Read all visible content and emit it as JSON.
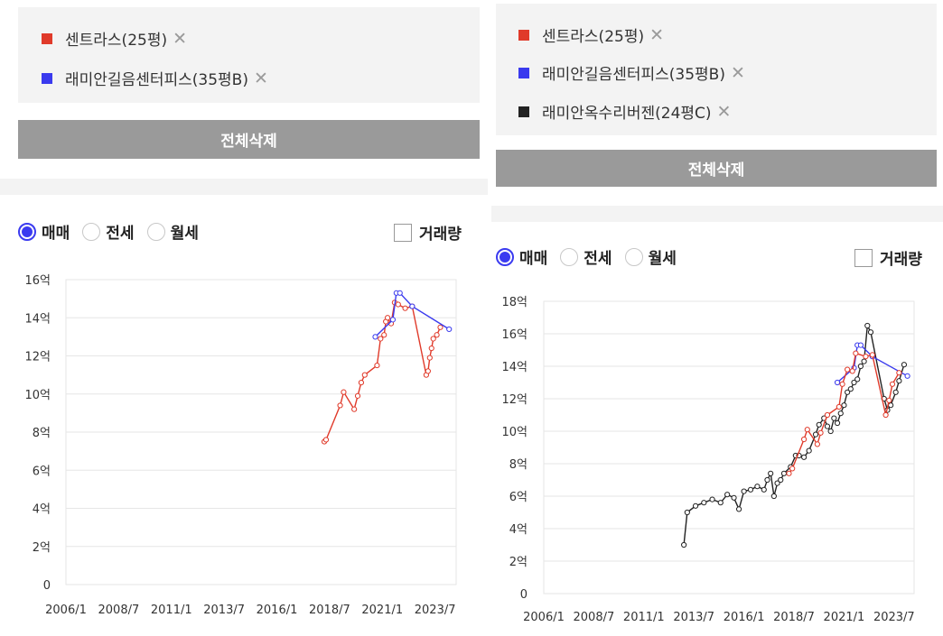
{
  "panels": [
    {
      "id": "left",
      "legend_items": [
        {
          "label": "센트라스(25평)",
          "color": "#e03a2a"
        },
        {
          "label": "래미안길음센터피스(35평B)",
          "color": "#3a3aee"
        }
      ],
      "remove_icon": "close-icon",
      "clear_label": "전체삭제",
      "radios": [
        {
          "label": "매매",
          "selected": true
        },
        {
          "label": "전세",
          "selected": false
        },
        {
          "label": "월세",
          "selected": false
        }
      ],
      "volume_label": "거래량",
      "volume_checked": false
    },
    {
      "id": "right",
      "legend_items": [
        {
          "label": "센트라스(25평)",
          "color": "#e03a2a"
        },
        {
          "label": "래미안길음센터피스(35평B)",
          "color": "#3a3aee"
        },
        {
          "label": "래미안옥수리버젠(24평C)",
          "color": "#222222"
        }
      ],
      "remove_icon": "close-icon",
      "clear_label": "전체삭제",
      "radios": [
        {
          "label": "매매",
          "selected": true
        },
        {
          "label": "전세",
          "selected": false
        },
        {
          "label": "월세",
          "selected": false
        }
      ],
      "volume_label": "거래량",
      "volume_checked": false
    }
  ],
  "chart_data": [
    {
      "type": "line",
      "x_ticks": [
        "2006/1",
        "2008/7",
        "2011/1",
        "2013/7",
        "2016/1",
        "2018/7",
        "2021/1",
        "2023/7"
      ],
      "x_range": [
        "2006/1",
        "2024/7"
      ],
      "y_ticks": [
        "0",
        "2억",
        "4억",
        "6억",
        "8억",
        "10억",
        "12억",
        "14억",
        "16억"
      ],
      "y_unit": "억",
      "ylim": [
        0,
        16
      ],
      "grid": true,
      "series": [
        {
          "name": "센트라스(25평)",
          "color": "#e03a2a",
          "points": [
            [
              "2018/4",
              7.5
            ],
            [
              "2018/5",
              7.6
            ],
            [
              "2019/1",
              9.4
            ],
            [
              "2019/3",
              10.1
            ],
            [
              "2019/9",
              9.2
            ],
            [
              "2019/11",
              9.9
            ],
            [
              "2020/1",
              10.6
            ],
            [
              "2020/3",
              11.0
            ],
            [
              "2020/10",
              11.5
            ],
            [
              "2020/12",
              12.9
            ],
            [
              "2021/2",
              13.1
            ],
            [
              "2021/3",
              13.8
            ],
            [
              "2021/4",
              14.0
            ],
            [
              "2021/6",
              13.7
            ],
            [
              "2021/8",
              14.8
            ],
            [
              "2021/10",
              14.7
            ],
            [
              "2022/2",
              14.5
            ],
            [
              "2022/6",
              14.6
            ],
            [
              "2023/2",
              11.0
            ],
            [
              "2023/3",
              11.2
            ],
            [
              "2023/4",
              11.9
            ],
            [
              "2023/5",
              12.4
            ],
            [
              "2023/6",
              12.9
            ],
            [
              "2023/8",
              13.1
            ],
            [
              "2023/10",
              13.5
            ]
          ]
        },
        {
          "name": "래미안길음센터피스(35평B)",
          "color": "#3a3aee",
          "points": [
            [
              "2020/9",
              13.0
            ],
            [
              "2021/7",
              13.9
            ],
            [
              "2021/9",
              15.3
            ],
            [
              "2021/11",
              15.3
            ],
            [
              "2022/6",
              14.6
            ],
            [
              "2024/3",
              13.4
            ]
          ]
        }
      ]
    },
    {
      "type": "line",
      "x_ticks": [
        "2006/1",
        "2008/7",
        "2011/1",
        "2013/7",
        "2016/1",
        "2018/7",
        "2021/1",
        "2023/7"
      ],
      "x_range": [
        "2006/1",
        "2024/7"
      ],
      "y_ticks": [
        "0",
        "2억",
        "4억",
        "6억",
        "8억",
        "10억",
        "12억",
        "14억",
        "16억",
        "18억"
      ],
      "y_unit": "억",
      "ylim": [
        0,
        18
      ],
      "grid": true,
      "series": [
        {
          "name": "센트라스(25평)",
          "color": "#e03a2a",
          "points": [
            [
              "2018/4",
              7.4
            ],
            [
              "2018/6",
              7.7
            ],
            [
              "2019/1",
              9.5
            ],
            [
              "2019/3",
              10.1
            ],
            [
              "2019/9",
              9.2
            ],
            [
              "2019/11",
              9.9
            ],
            [
              "2020/3",
              11.0
            ],
            [
              "2020/10",
              11.5
            ],
            [
              "2020/12",
              12.9
            ],
            [
              "2021/3",
              13.8
            ],
            [
              "2021/6",
              13.7
            ],
            [
              "2021/8",
              14.8
            ],
            [
              "2022/2",
              14.6
            ],
            [
              "2022/6",
              14.7
            ],
            [
              "2023/2",
              11.0
            ],
            [
              "2023/4",
              11.9
            ],
            [
              "2023/6",
              12.9
            ],
            [
              "2023/10",
              13.6
            ]
          ]
        },
        {
          "name": "래미안길음센터피스(35평B)",
          "color": "#3a3aee",
          "points": [
            [
              "2020/9",
              13.0
            ],
            [
              "2021/7",
              13.9
            ],
            [
              "2021/9",
              15.3
            ],
            [
              "2021/11",
              15.3
            ],
            [
              "2022/6",
              14.6
            ],
            [
              "2024/3",
              13.4
            ]
          ]
        },
        {
          "name": "래미안옥수리버젠(24평C)",
          "color": "#222222",
          "points": [
            [
              "2013/1",
              3.0
            ],
            [
              "2013/3",
              5.0
            ],
            [
              "2013/8",
              5.4
            ],
            [
              "2014/1",
              5.6
            ],
            [
              "2014/6",
              5.8
            ],
            [
              "2014/11",
              5.6
            ],
            [
              "2015/3",
              6.1
            ],
            [
              "2015/7",
              5.9
            ],
            [
              "2015/10",
              5.2
            ],
            [
              "2016/1",
              6.3
            ],
            [
              "2016/5",
              6.4
            ],
            [
              "2016/9",
              6.6
            ],
            [
              "2017/1",
              6.4
            ],
            [
              "2017/3",
              7.0
            ],
            [
              "2017/5",
              7.4
            ],
            [
              "2017/7",
              6.0
            ],
            [
              "2017/9",
              6.8
            ],
            [
              "2017/11",
              7.0
            ],
            [
              "2018/1",
              7.4
            ],
            [
              "2018/5",
              7.8
            ],
            [
              "2018/8",
              8.5
            ],
            [
              "2018/10",
              8.5
            ],
            [
              "2019/1",
              8.4
            ],
            [
              "2019/4",
              8.8
            ],
            [
              "2019/8",
              9.8
            ],
            [
              "2019/10",
              10.4
            ],
            [
              "2020/1",
              10.8
            ],
            [
              "2020/3",
              10.3
            ],
            [
              "2020/5",
              10.0
            ],
            [
              "2020/7",
              10.8
            ],
            [
              "2020/9",
              10.5
            ],
            [
              "2020/11",
              11.1
            ],
            [
              "2021/1",
              11.6
            ],
            [
              "2021/3",
              12.4
            ],
            [
              "2021/5",
              12.6
            ],
            [
              "2021/7",
              13.0
            ],
            [
              "2021/9",
              13.2
            ],
            [
              "2021/11",
              14.0
            ],
            [
              "2022/1",
              14.3
            ],
            [
              "2022/3",
              16.5
            ],
            [
              "2022/5",
              16.1
            ],
            [
              "2023/1",
              12.0
            ],
            [
              "2023/3",
              11.3
            ],
            [
              "2023/5",
              11.6
            ],
            [
              "2023/8",
              12.4
            ],
            [
              "2023/10",
              13.1
            ],
            [
              "2024/1",
              14.1
            ]
          ]
        }
      ]
    }
  ]
}
